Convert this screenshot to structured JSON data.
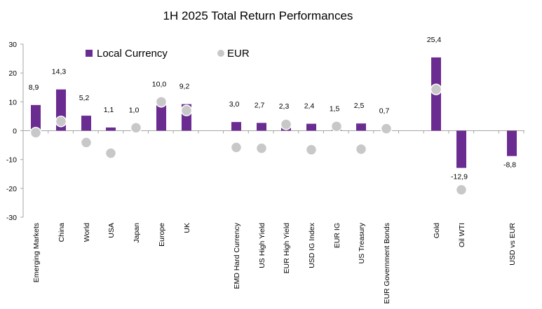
{
  "chart_data": {
    "type": "bar",
    "title": "1H 2025 Total Return Performances",
    "ylim": [
      -30,
      30
    ],
    "yticks": [
      "30",
      "20",
      "10",
      "0",
      "-10",
      "-20",
      "-30"
    ],
    "categories": [
      "Emerging Markets",
      "China",
      "World",
      "USA",
      "Japan",
      "Europe",
      "UK",
      "EMD Hard Currency",
      "US High Yield",
      "EUR High Yield",
      "USD IG Index",
      "EUR IG",
      "US Treasury",
      "EUR Government Bonds",
      "Gold",
      "Oil WTI",
      "USD vs EUR"
    ],
    "series": [
      {
        "name": "Local Currency",
        "kind": "bar",
        "values": [
          8.9,
          14.3,
          5.2,
          1.1,
          1.0,
          10.0,
          9.2,
          3.0,
          2.7,
          2.3,
          2.4,
          1.5,
          2.5,
          0.7,
          25.4,
          -12.9,
          -8.8
        ],
        "labels": [
          "8,9",
          "14,3",
          "5,2",
          "1,1",
          "1,0",
          "10,0",
          "9,2",
          "3,0",
          "2,7",
          "2,3",
          "2,4",
          "1,5",
          "2,5",
          "0,7",
          "25,4",
          "-12,9",
          "-8,8"
        ]
      },
      {
        "name": "EUR",
        "kind": "dot",
        "values": [
          -0.7,
          3.2,
          -4.1,
          -7.8,
          1.0,
          10.0,
          7.0,
          -5.8,
          -6.1,
          2.2,
          -6.6,
          1.5,
          -6.4,
          0.7,
          14.3,
          -20.5,
          null
        ]
      }
    ],
    "colors": {
      "bar": "#6A2C91",
      "dot": "#C8C8C8",
      "axis": "#A6A6A6"
    },
    "legend": {
      "position": "top",
      "items": [
        "Local Currency",
        "EUR"
      ]
    }
  }
}
